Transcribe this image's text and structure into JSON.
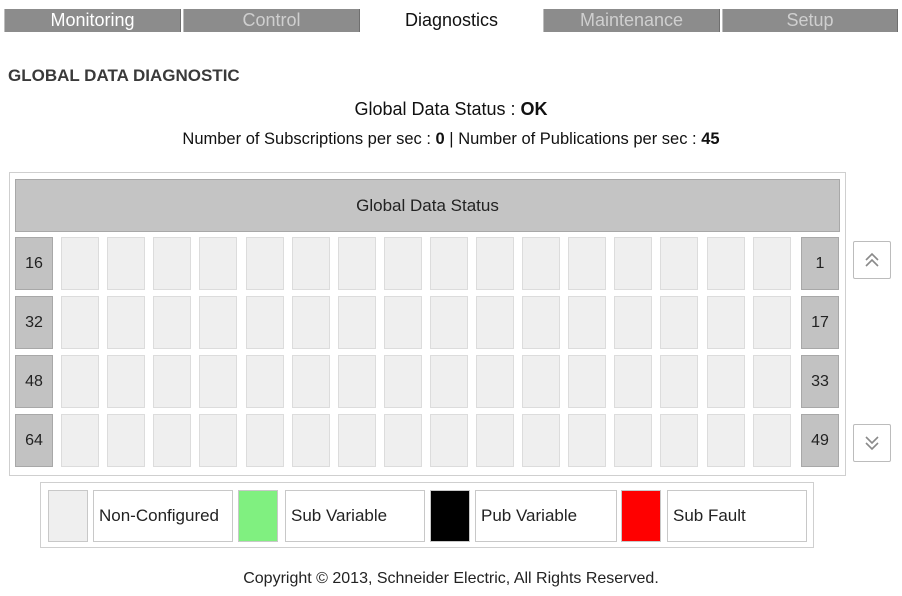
{
  "tabs": [
    {
      "label": "Monitoring",
      "active": false
    },
    {
      "label": "Control",
      "active": false
    },
    {
      "label": "Diagnostics",
      "active": true
    },
    {
      "label": "Maintenance",
      "active": false
    },
    {
      "label": "Setup",
      "active": false
    }
  ],
  "section_title": "GLOBAL DATA DIAGNOSTIC",
  "status": {
    "label": "Global Data Status : ",
    "value": "OK"
  },
  "rates": {
    "subscriptions_label": "Number of Subscriptions per sec : ",
    "subscriptions_value": "0",
    "separator": " | ",
    "publications_label": "Number of Publications per sec : ",
    "publications_value": "45"
  },
  "grid": {
    "header": "Global Data Status",
    "rows": [
      {
        "left_label": "16",
        "right_label": "1"
      },
      {
        "left_label": "32",
        "right_label": "17"
      },
      {
        "left_label": "48",
        "right_label": "33"
      },
      {
        "left_label": "64",
        "right_label": "49"
      }
    ],
    "cells_per_row": 16,
    "cell_color": "#efefef"
  },
  "scroll": {
    "up_icon": "double-chevron-up-icon",
    "down_icon": "double-chevron-down-icon"
  },
  "legend": [
    {
      "label": "Non-Configured",
      "color": "#efefef"
    },
    {
      "label": "Sub Variable",
      "color": "#80f080"
    },
    {
      "label": "Pub Variable",
      "color": "#000000"
    },
    {
      "label": "Sub Fault",
      "color": "#ff0000"
    }
  ],
  "copyright": "Copyright © 2013, Schneider Electric, All Rights Reserved."
}
